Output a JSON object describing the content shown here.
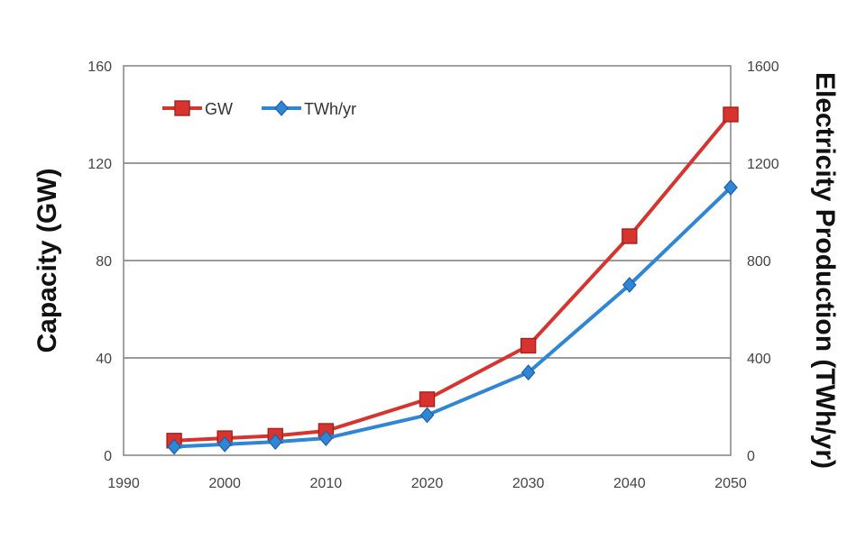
{
  "chart_data": {
    "type": "line",
    "title": "",
    "xlabel": "",
    "ylabel": "Capacity (GW)",
    "y2label": "Electricity Production (TWh/yr)",
    "xlim": [
      1990,
      2050
    ],
    "ylim": [
      0,
      160
    ],
    "y2lim": [
      0,
      1600
    ],
    "x_ticks": [
      1990,
      2000,
      2010,
      2020,
      2030,
      2040,
      2050
    ],
    "y_ticks": [
      0,
      40,
      80,
      120,
      160
    ],
    "y2_ticks": [
      0,
      400,
      800,
      1200,
      1600
    ],
    "grid": "horizontal",
    "legend_position": "top-left",
    "series": [
      {
        "name": "GW",
        "axis": "left",
        "color": "#d7342f",
        "marker": "square",
        "x": [
          1995,
          2000,
          2005,
          2010,
          2020,
          2030,
          2040,
          2050
        ],
        "values": [
          6,
          7,
          8,
          10,
          23,
          45,
          90,
          140
        ]
      },
      {
        "name": "TWh/yr",
        "axis": "right",
        "color": "#2f86d6",
        "marker": "diamond",
        "x": [
          1995,
          2000,
          2005,
          2010,
          2020,
          2030,
          2040,
          2050
        ],
        "values": [
          35,
          45,
          55,
          70,
          165,
          340,
          700,
          1100
        ]
      }
    ]
  }
}
